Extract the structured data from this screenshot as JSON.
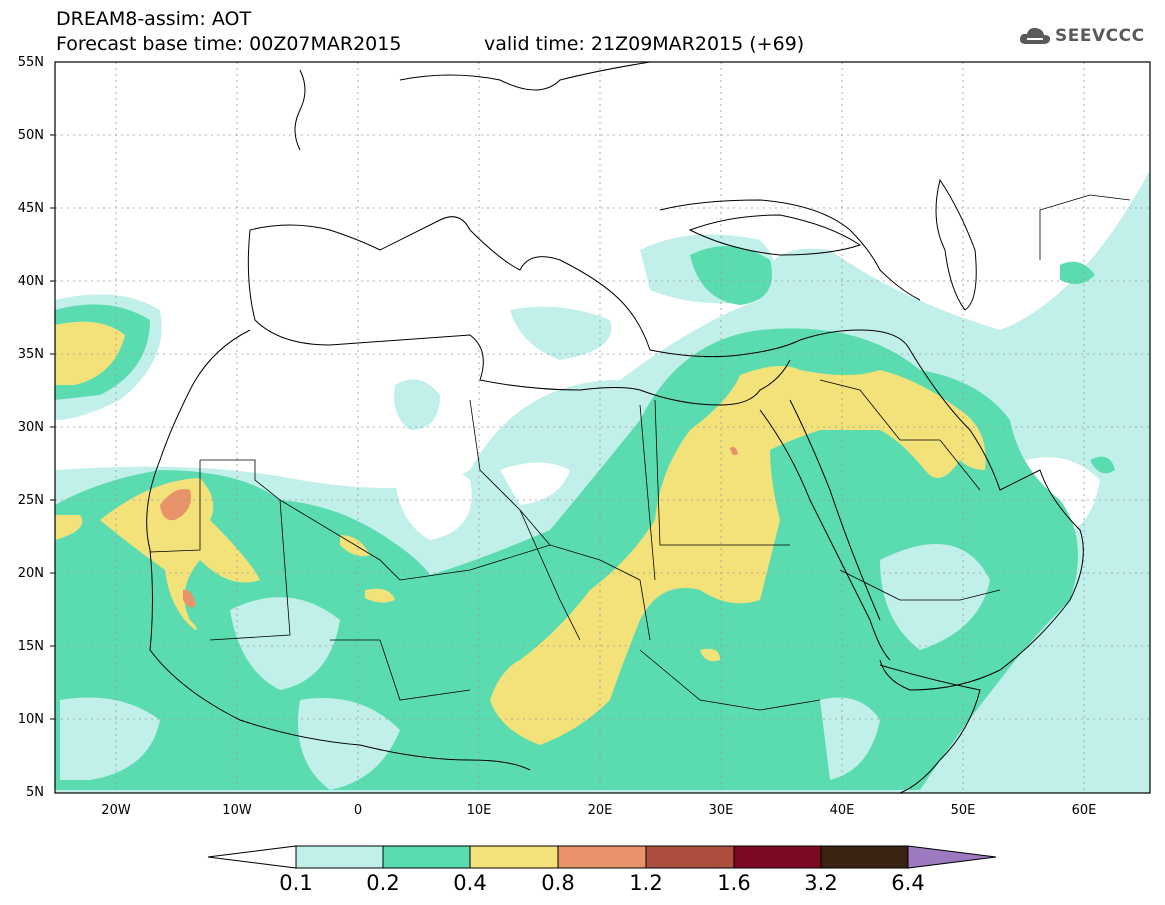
{
  "header": {
    "title": "DREAM8-assim: AOT",
    "base_time": "Forecast base time: 00Z07MAR2015",
    "valid_time": "valid time: 21Z09MAR2015 (+69)",
    "logo_text": "SEEVCCC"
  },
  "map": {
    "lat_labels": [
      "55N",
      "50N",
      "45N",
      "40N",
      "35N",
      "30N",
      "25N",
      "20N",
      "15N",
      "10N",
      "5N"
    ],
    "lon_labels": [
      "20W",
      "10W",
      "0",
      "10E",
      "20E",
      "30E",
      "40E",
      "50E",
      "60E"
    ],
    "grid": true
  },
  "colorbar": {
    "labels": [
      "0.1",
      "0.2",
      "0.4",
      "0.8",
      "1.2",
      "1.6",
      "3.2",
      "6.4"
    ],
    "colors": [
      "#ffffff",
      "#c1efe9",
      "#5bdcb0",
      "#f3e27a",
      "#e9936b",
      "#ad4f3f",
      "#7d0a22",
      "#3a2313",
      "#9d7ac0"
    ]
  }
}
